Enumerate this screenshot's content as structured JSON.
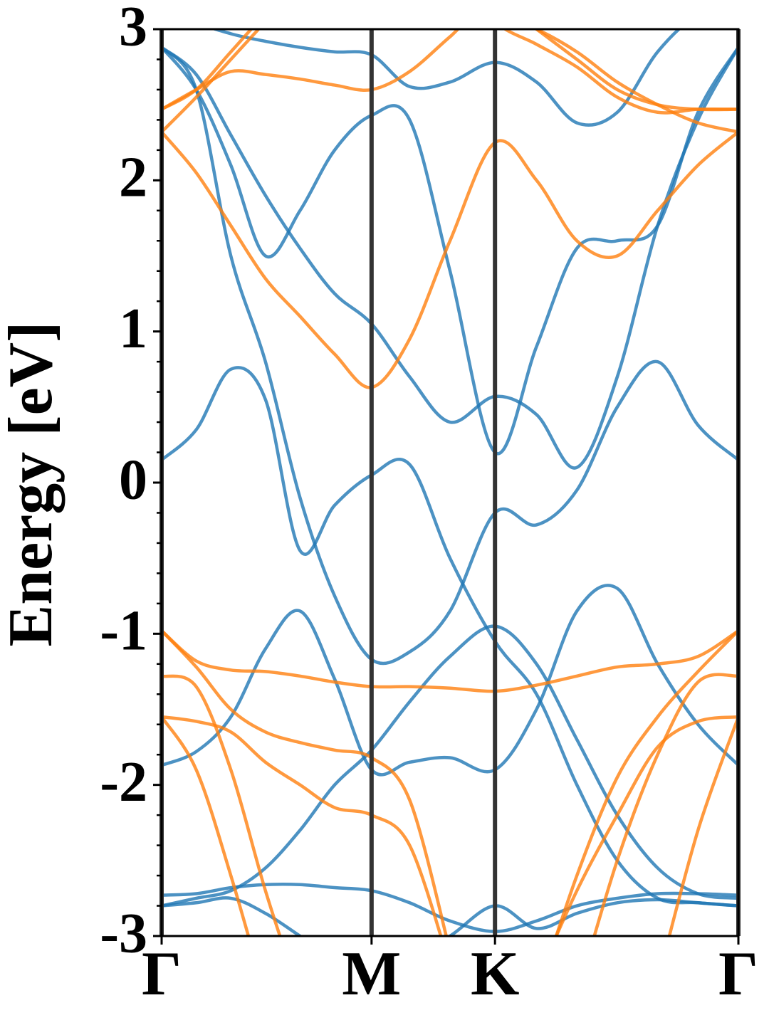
{
  "chart_data": {
    "type": "line",
    "ylabel": "Energy [eV]",
    "x": [
      0,
      0.06,
      0.12,
      0.18,
      0.24,
      0.3,
      0.364,
      0.43,
      0.5,
      0.578,
      0.65,
      0.72,
      0.79,
      0.86,
      0.93,
      1.0
    ],
    "xlim": [
      0,
      1
    ],
    "xticks": [
      {
        "value": 0,
        "label": "Γ"
      },
      {
        "value": 0.364,
        "label": "M"
      },
      {
        "value": 0.578,
        "label": "K"
      },
      {
        "value": 1.0,
        "label": "Γ"
      }
    ],
    "ylim": [
      -3,
      3
    ],
    "yticks": [
      -3,
      -2,
      -1,
      0,
      1,
      2,
      3
    ],
    "yminorticks": [
      -2.8,
      -2.6,
      -2.4,
      -2.2,
      -1.8,
      -1.6,
      -1.4,
      -1.2,
      -0.8,
      -0.6,
      -0.4,
      -0.2,
      0.2,
      0.4,
      0.6,
      0.8,
      1.2,
      1.4,
      1.6,
      1.8,
      2.2,
      2.4,
      2.6,
      2.8
    ],
    "series": [
      {
        "color": "#1f77b4",
        "values": [
          0.15,
          0.35,
          0.75,
          0.55,
          -0.45,
          -0.15,
          0.05,
          0.12,
          -0.5,
          -1.05,
          -1.4,
          -2.0,
          -2.5,
          -2.75,
          -2.78,
          -2.8
        ]
      },
      {
        "color": "#1f77b4",
        "values": [
          2.88,
          2.6,
          1.5,
          0.8,
          -0.1,
          -0.75,
          -1.17,
          -1.12,
          -0.85,
          -0.2,
          -0.28,
          -0.05,
          0.5,
          0.8,
          0.38,
          0.15
        ]
      },
      {
        "color": "#1f77b4",
        "values": [
          2.88,
          2.7,
          2.3,
          1.9,
          1.55,
          1.25,
          1.05,
          0.7,
          0.4,
          0.57,
          0.45,
          0.1,
          0.7,
          1.7,
          2.4,
          2.88
        ]
      },
      {
        "color": "#1f77b4",
        "values": [
          2.88,
          2.6,
          2.1,
          1.5,
          1.8,
          2.2,
          2.43,
          2.4,
          1.4,
          0.2,
          0.9,
          1.55,
          1.6,
          1.7,
          2.45,
          2.88
        ]
      },
      {
        "color": "#1f77b4",
        "values": [
          3.2,
          3.05,
          2.97,
          2.92,
          2.88,
          2.85,
          2.83,
          2.62,
          2.65,
          2.78,
          2.65,
          2.38,
          2.45,
          2.85,
          3.1,
          3.2
        ]
      },
      {
        "color": "#1f77b4",
        "values": [
          -1.87,
          -1.78,
          -1.55,
          -1.1,
          -0.85,
          -1.3,
          -1.9,
          -1.85,
          -1.82,
          -1.9,
          -1.5,
          -0.85,
          -0.7,
          -1.2,
          -1.6,
          -1.87
        ]
      },
      {
        "color": "#1f77b4",
        "values": [
          -2.8,
          -2.75,
          -2.7,
          -2.55,
          -2.3,
          -2.0,
          -1.77,
          -1.45,
          -1.15,
          -0.95,
          -1.2,
          -1.7,
          -2.2,
          -2.55,
          -2.72,
          -2.75
        ]
      },
      {
        "color": "#1f77b4",
        "values": [
          -2.73,
          -2.72,
          -2.68,
          -2.66,
          -2.66,
          -2.68,
          -2.7,
          -2.78,
          -2.9,
          -2.97,
          -2.9,
          -2.8,
          -2.75,
          -2.72,
          -2.72,
          -2.73
        ]
      },
      {
        "color": "#1f77b4",
        "values": [
          -2.8,
          -2.78,
          -2.75,
          -2.85,
          -3.0,
          -3.15,
          -3.2,
          -3.15,
          -3.0,
          -2.8,
          -2.95,
          -2.85,
          -2.78,
          -2.76,
          -2.78,
          -2.8
        ]
      },
      {
        "color": "#ff7f0e",
        "values": [
          2.32,
          2.05,
          1.7,
          1.35,
          1.1,
          0.85,
          0.63,
          0.95,
          1.6,
          2.25,
          2.0,
          1.6,
          1.5,
          1.8,
          2.1,
          2.32
        ]
      },
      {
        "color": "#ff7f0e",
        "values": [
          2.47,
          2.6,
          2.72,
          2.7,
          2.67,
          2.63,
          2.6,
          2.72,
          2.95,
          3.2,
          3.0,
          2.8,
          2.6,
          2.5,
          2.47,
          2.47
        ]
      },
      {
        "color": "#ff7f0e",
        "values": [
          2.32,
          2.55,
          2.8,
          3.05,
          3.3,
          3.5,
          3.6,
          3.5,
          3.3,
          3.1,
          3.0,
          2.85,
          2.65,
          2.5,
          2.38,
          2.32
        ]
      },
      {
        "color": "#ff7f0e",
        "values": [
          2.47,
          2.6,
          2.85,
          3.1,
          3.3,
          3.5,
          3.6,
          3.6,
          3.4,
          3.05,
          2.9,
          2.75,
          2.55,
          2.45,
          2.47,
          2.47
        ]
      },
      {
        "color": "#ff7f0e",
        "values": [
          -0.98,
          -1.18,
          -1.24,
          -1.25,
          -1.28,
          -1.32,
          -1.35,
          -1.35,
          -1.36,
          -1.38,
          -1.34,
          -1.28,
          -1.22,
          -1.2,
          -1.15,
          -0.98
        ]
      },
      {
        "color": "#ff7f0e",
        "values": [
          -1.55,
          -1.9,
          -2.6,
          -3.4,
          null,
          null,
          null,
          null,
          null,
          null,
          null,
          null,
          null,
          -3.3,
          -2.3,
          -1.55
        ]
      },
      {
        "color": "#ff7f0e",
        "values": [
          -1.28,
          -1.35,
          -1.9,
          -2.7,
          -3.4,
          null,
          null,
          null,
          null,
          null,
          null,
          -3.4,
          -2.5,
          -1.8,
          -1.32,
          -1.28
        ]
      },
      {
        "color": "#ff7f0e",
        "values": [
          -0.98,
          -1.22,
          -1.5,
          -1.65,
          -1.72,
          -1.77,
          -1.82,
          -2.1,
          -3.1,
          null,
          -3.4,
          -2.6,
          -1.95,
          -1.55,
          -1.25,
          -0.98
        ]
      },
      {
        "color": "#ff7f0e",
        "values": [
          -1.55,
          -1.58,
          -1.65,
          -1.85,
          -2.0,
          -2.15,
          -2.2,
          -2.4,
          -3.2,
          null,
          -3.3,
          -2.7,
          -2.2,
          -1.75,
          -1.58,
          -1.55
        ]
      }
    ]
  }
}
